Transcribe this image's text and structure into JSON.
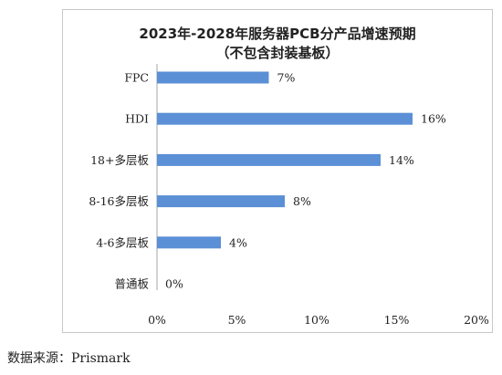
{
  "chart_data": {
    "type": "bar",
    "orientation": "horizontal",
    "title": "2023年-2028年服务器PCB分产品增速预期",
    "subtitle": "（不包含封装基板）",
    "categories": [
      "FPC",
      "HDI",
      "18+多层板",
      "8-16多层板",
      "4-6多层板",
      "普通板"
    ],
    "values": [
      7,
      16,
      14,
      8,
      4,
      0
    ],
    "value_labels": [
      "7%",
      "16%",
      "14%",
      "8%",
      "4%",
      "0%"
    ],
    "x_ticks": [
      "0%",
      "5%",
      "10%",
      "15%",
      "20%"
    ],
    "xlim": [
      0,
      20
    ],
    "grid": false,
    "bar_color": "#5b8fd6"
  },
  "source_text": "数据来源：Prismark"
}
